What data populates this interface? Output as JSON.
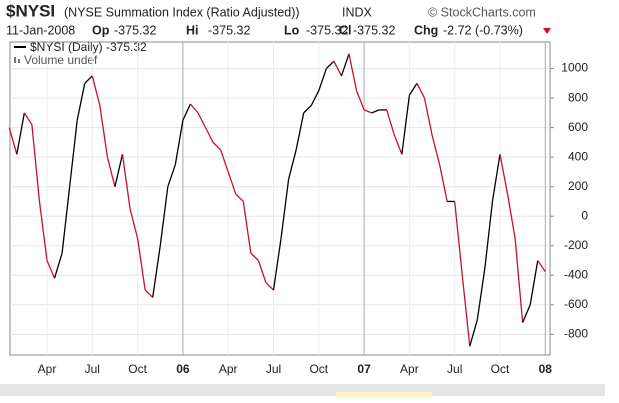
{
  "chart_data": {
    "type": "line",
    "title": "$NYSI",
    "subtitle": "(NYSE Summation Index (Ratio Adjusted))",
    "exchange": "INDX",
    "source": "© StockCharts.com",
    "date": "11-Jan-2008",
    "quote": [
      {
        "label": "Op",
        "value": -375.32
      },
      {
        "label": "Hi",
        "value": -375.32
      },
      {
        "label": "Lo",
        "value": -375.32
      },
      {
        "label": "Cl",
        "value": -375.32
      }
    ],
    "change_label": "Chg",
    "change": "-2.72 (-0.73%)",
    "volume_label": "Volume undef",
    "categories": [
      null,
      null,
      null,
      null,
      null,
      "Apr",
      null,
      null,
      null,
      null,
      null,
      "Jul",
      null,
      null,
      null,
      null,
      null,
      "Oct",
      null,
      null,
      null,
      null,
      null,
      "06",
      null,
      null,
      null,
      null,
      null,
      "Apr",
      null,
      null,
      null,
      null,
      null,
      "Jul",
      null,
      null,
      null,
      null,
      null,
      "Oct",
      null,
      null,
      null,
      null,
      null,
      "07",
      null,
      null,
      null,
      null,
      null,
      "Apr",
      null,
      null,
      null,
      null,
      null,
      "Jul",
      null,
      null,
      null,
      null,
      null,
      "Oct",
      null,
      null,
      null,
      null,
      null,
      "08"
    ],
    "series": [
      {
        "name": "$NYSI (Daily) -375.32",
        "up_color": "#000000",
        "down_color": "#c8102e",
        "values": [
          600,
          420,
          700,
          620,
          100,
          -300,
          -420,
          -250,
          200,
          650,
          900,
          950,
          750,
          400,
          200,
          420,
          50,
          -150,
          -500,
          -550,
          -200,
          200,
          350,
          650,
          760,
          700,
          600,
          500,
          450,
          300,
          150,
          100,
          -250,
          -300,
          -450,
          -500,
          -150,
          250,
          450,
          700,
          750,
          850,
          1000,
          1050,
          950,
          1100,
          850,
          720,
          700,
          720,
          720,
          550,
          420,
          820,
          900,
          800,
          550,
          350,
          100,
          100,
          -400,
          -880,
          -700,
          -350,
          100,
          420,
          150,
          -150,
          -720,
          -600,
          -300,
          -375
        ]
      }
    ],
    "ylim": [
      -940,
      1180
    ],
    "yticks": [
      1000,
      800,
      600,
      400,
      200,
      0,
      -200,
      -400,
      -600,
      -800
    ],
    "grid": true
  }
}
